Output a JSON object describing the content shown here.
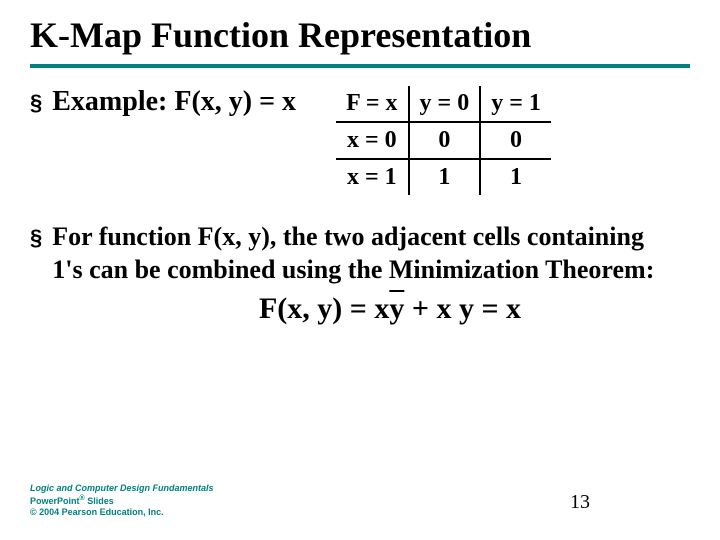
{
  "title": "K-Map Function Representation",
  "ruleColor": "#008080",
  "bullet1": {
    "marker": "§",
    "text": "Example: F(x, y) = x"
  },
  "kmap": {
    "h0": "F = x",
    "h1": "y = 0",
    "h2": "y = 1",
    "r1c0": "x = 0",
    "r1c1": "0",
    "r1c2": "0",
    "r2c0": "x = 1",
    "r2c1": "1",
    "r2c2": "1"
  },
  "bullet2": {
    "marker": "§",
    "text": "For function F(x, y), the two adjacent cells containing 1's can be combined using the Minimization Theorem:"
  },
  "equation": {
    "lhs": "F(x, y) = x",
    "ybar": "y",
    "mid": " + x y = x"
  },
  "footer": {
    "line1": "Logic and Computer Design Fundamentals",
    "line2a": "PowerPoint",
    "line2sup": "®",
    "line2b": " Slides",
    "line3": "© 2004 Pearson Education, Inc.",
    "color": "#008080"
  },
  "pageNumber": "13"
}
